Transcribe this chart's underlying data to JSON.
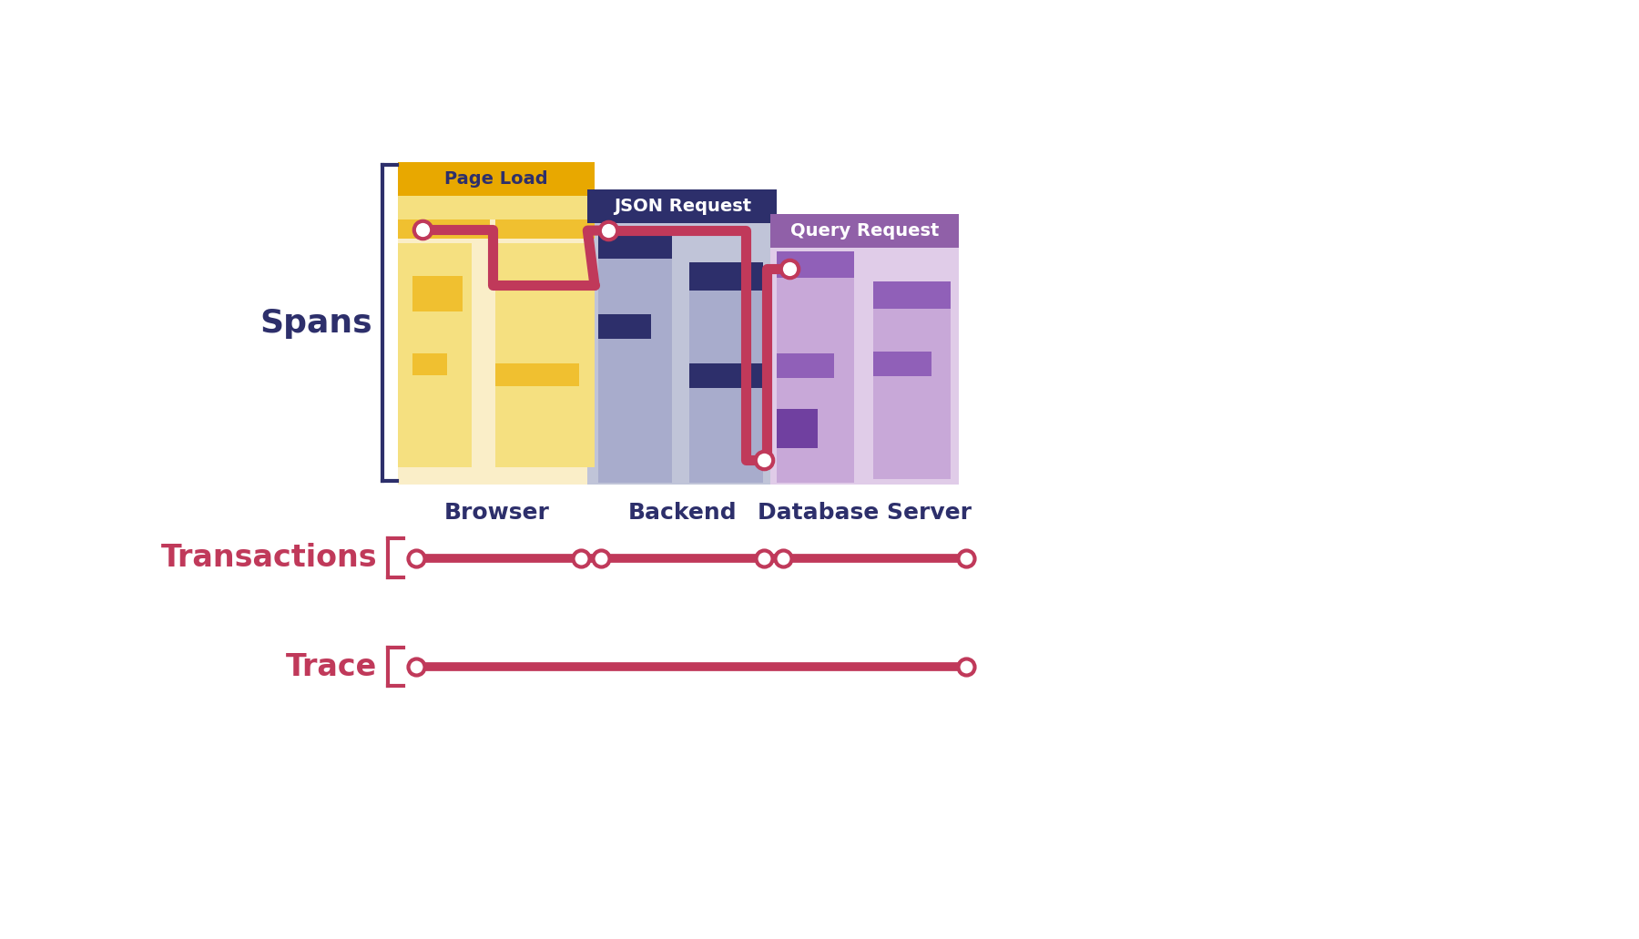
{
  "bg_color": "#ffffff",
  "label_color": "#2d2f6b",
  "line_color": "#c0395a",
  "spans_label": "Spans",
  "transactions_label": "Transactions",
  "trace_label": "Trace",
  "browser_label": "Browser",
  "backend_label": "Backend",
  "db_label": "Database Server",
  "page_load_label": "Page Load",
  "json_request_label": "JSON Request",
  "query_request_label": "Query Request",
  "page_load_header_color": "#e8a800",
  "page_load_bg_color": "#faeec8",
  "page_load_bar_bright": "#f0c030",
  "page_load_bar_light": "#f5e080",
  "json_header_color": "#2d2f6b",
  "json_bg_color": "#c0c4d8",
  "json_bar_dark": "#2d2f6b",
  "json_bar_light": "#a8accc",
  "query_header_color": "#9060a8",
  "query_bg_color": "#e0cce8",
  "query_bar_dark": "#7040a0",
  "query_bar_medium": "#9060b8",
  "query_bar_light": "#c8a8d8",
  "bracket_color_dark": "#2d2f6b",
  "bracket_color_red": "#c0395a"
}
